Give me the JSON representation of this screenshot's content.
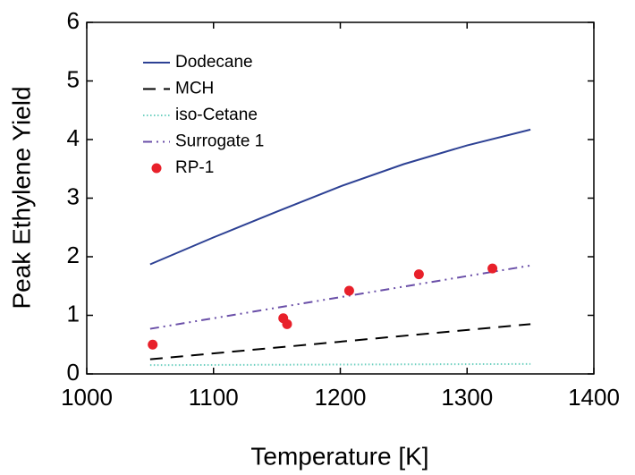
{
  "chart_data": {
    "type": "line",
    "xlabel": "Temperature [K]",
    "ylabel": "Peak Ethylene Yield",
    "xlim": [
      1000,
      1400
    ],
    "xticks": [
      1000,
      1100,
      1200,
      1300,
      1400
    ],
    "ylim": [
      0,
      6
    ],
    "yticks": [
      0,
      1,
      2,
      3,
      4,
      5,
      6
    ],
    "grid": false,
    "legend": "upper left",
    "series": [
      {
        "name": "Dodecane",
        "color": "#2d4194",
        "style": "solid",
        "x": [
          1050,
          1100,
          1150,
          1200,
          1250,
          1300,
          1350
        ],
        "values": [
          1.87,
          2.33,
          2.77,
          3.2,
          3.58,
          3.9,
          4.17
        ]
      },
      {
        "name": "MCH",
        "color": "#000000",
        "style": "dashed",
        "x": [
          1050,
          1350
        ],
        "values": [
          0.25,
          0.85
        ]
      },
      {
        "name": "iso-Cetane",
        "color": "#6fd0c0",
        "style": "dotted",
        "x": [
          1050,
          1350
        ],
        "values": [
          0.15,
          0.17
        ]
      },
      {
        "name": "Surrogate 1",
        "color": "#6a4fa8",
        "style": "dashdot",
        "x": [
          1050,
          1350
        ],
        "values": [
          0.77,
          1.85
        ]
      },
      {
        "name": "RP-1",
        "color": "#e8202a",
        "style": "markers",
        "x": [
          1052,
          1155,
          1158,
          1207,
          1262,
          1320
        ],
        "values": [
          0.5,
          0.95,
          0.85,
          1.42,
          1.7,
          1.8
        ]
      }
    ]
  }
}
